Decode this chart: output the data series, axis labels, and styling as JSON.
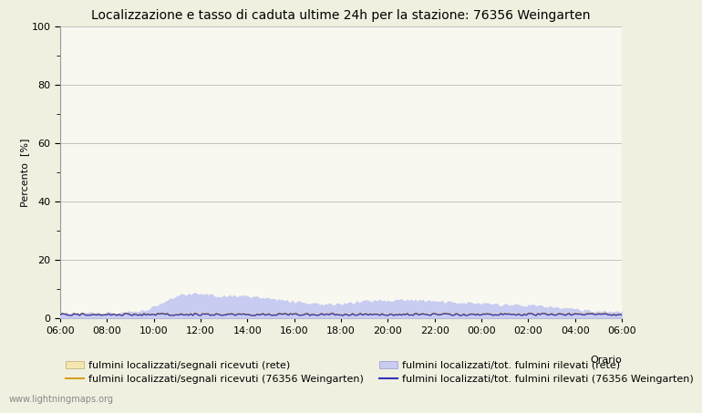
{
  "title": "Localizzazione e tasso di caduta ultime 24h per la stazione: 76356 Weingarten",
  "ylabel": "Percento  [%]",
  "xlabel_right": "Orario",
  "watermark": "www.lightningmaps.org",
  "ylim": [
    0,
    100
  ],
  "yticks": [
    0,
    20,
    40,
    60,
    80,
    100
  ],
  "yticks_minor": [
    10,
    30,
    50,
    70,
    90
  ],
  "x_labels": [
    "06:00",
    "08:00",
    "10:00",
    "12:00",
    "14:00",
    "16:00",
    "18:00",
    "20:00",
    "22:00",
    "00:00",
    "02:00",
    "04:00",
    "06:00"
  ],
  "fill_rete_color": "#f5e6b0",
  "fill_rete_alpha": 1.0,
  "fill_station_color": "#c8ccf0",
  "fill_station_alpha": 1.0,
  "line_rete_color": "#d4a020",
  "line_station_color": "#3333bb",
  "bg_color": "#f0f0e0",
  "plot_bg_color": "#f8f8f0",
  "grid_color": "#bbbbbb",
  "title_fontsize": 10,
  "axis_fontsize": 8,
  "legend_fontsize": 8,
  "legend1_label": "fulmini localizzati/segnali ricevuti (rete)",
  "legend2_label": "fulmini localizzati/segnali ricevuti (76356 Weingarten)",
  "legend3_label": "fulmini localizzati/tot. fulmini rilevati (rete)",
  "legend4_label": "fulmini localizzati/tot. fulmini rilevati (76356 Weingarten)"
}
